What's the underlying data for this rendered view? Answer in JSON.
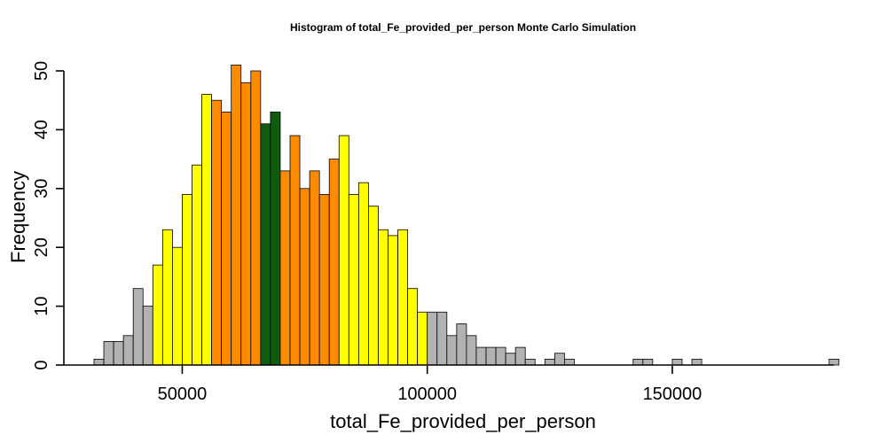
{
  "chart_data": {
    "type": "bar",
    "title": "Histogram of  total_Fe_provided_per_person  Monte Carlo Simulation",
    "xlabel": "total_Fe_provided_per_person",
    "ylabel": "Frequency",
    "bin_start": 32000,
    "bin_width": 2000,
    "xlim": [
      32000,
      184000
    ],
    "ylim": [
      0,
      50
    ],
    "x_ticks": [
      50000,
      100000,
      150000
    ],
    "y_ticks": [
      0,
      10,
      20,
      30,
      40,
      50
    ],
    "values": [
      1,
      4,
      4,
      5,
      13,
      10,
      17,
      23,
      20,
      29,
      34,
      46,
      45,
      43,
      51,
      48,
      50,
      41,
      43,
      33,
      39,
      30,
      33,
      29,
      35,
      39,
      29,
      31,
      27,
      23,
      22,
      23,
      13,
      9,
      9,
      9,
      5,
      7,
      5,
      3,
      3,
      3,
      2,
      3,
      1,
      0,
      1,
      2,
      1,
      0,
      0,
      0,
      0,
      0,
      0,
      1,
      1,
      0,
      0,
      1,
      0,
      1,
      0,
      0,
      0,
      0,
      0,
      0,
      0,
      0,
      0,
      0,
      0,
      0,
      0,
      1
    ],
    "bin_colors": [
      "#b2b2b2",
      "#b2b2b2",
      "#b2b2b2",
      "#b2b2b2",
      "#b2b2b2",
      "#b2b2b2",
      "#ffff00",
      "#ffff00",
      "#ffff00",
      "#ffff00",
      "#ffff00",
      "#ffff00",
      "#ff8c00",
      "#ff8c00",
      "#ff8c00",
      "#ff8c00",
      "#ff8c00",
      "#0f5b0f",
      "#0f5b0f",
      "#ff8c00",
      "#ff8c00",
      "#ff8c00",
      "#ff8c00",
      "#ff8c00",
      "#ff8c00",
      "#ffff00",
      "#ffff00",
      "#ffff00",
      "#ffff00",
      "#ffff00",
      "#ffff00",
      "#ffff00",
      "#ffff00",
      "#ffff00",
      "#b2b2b2"
    ],
    "default_color": "#b2b2b2",
    "legend": "none",
    "grid": false
  }
}
